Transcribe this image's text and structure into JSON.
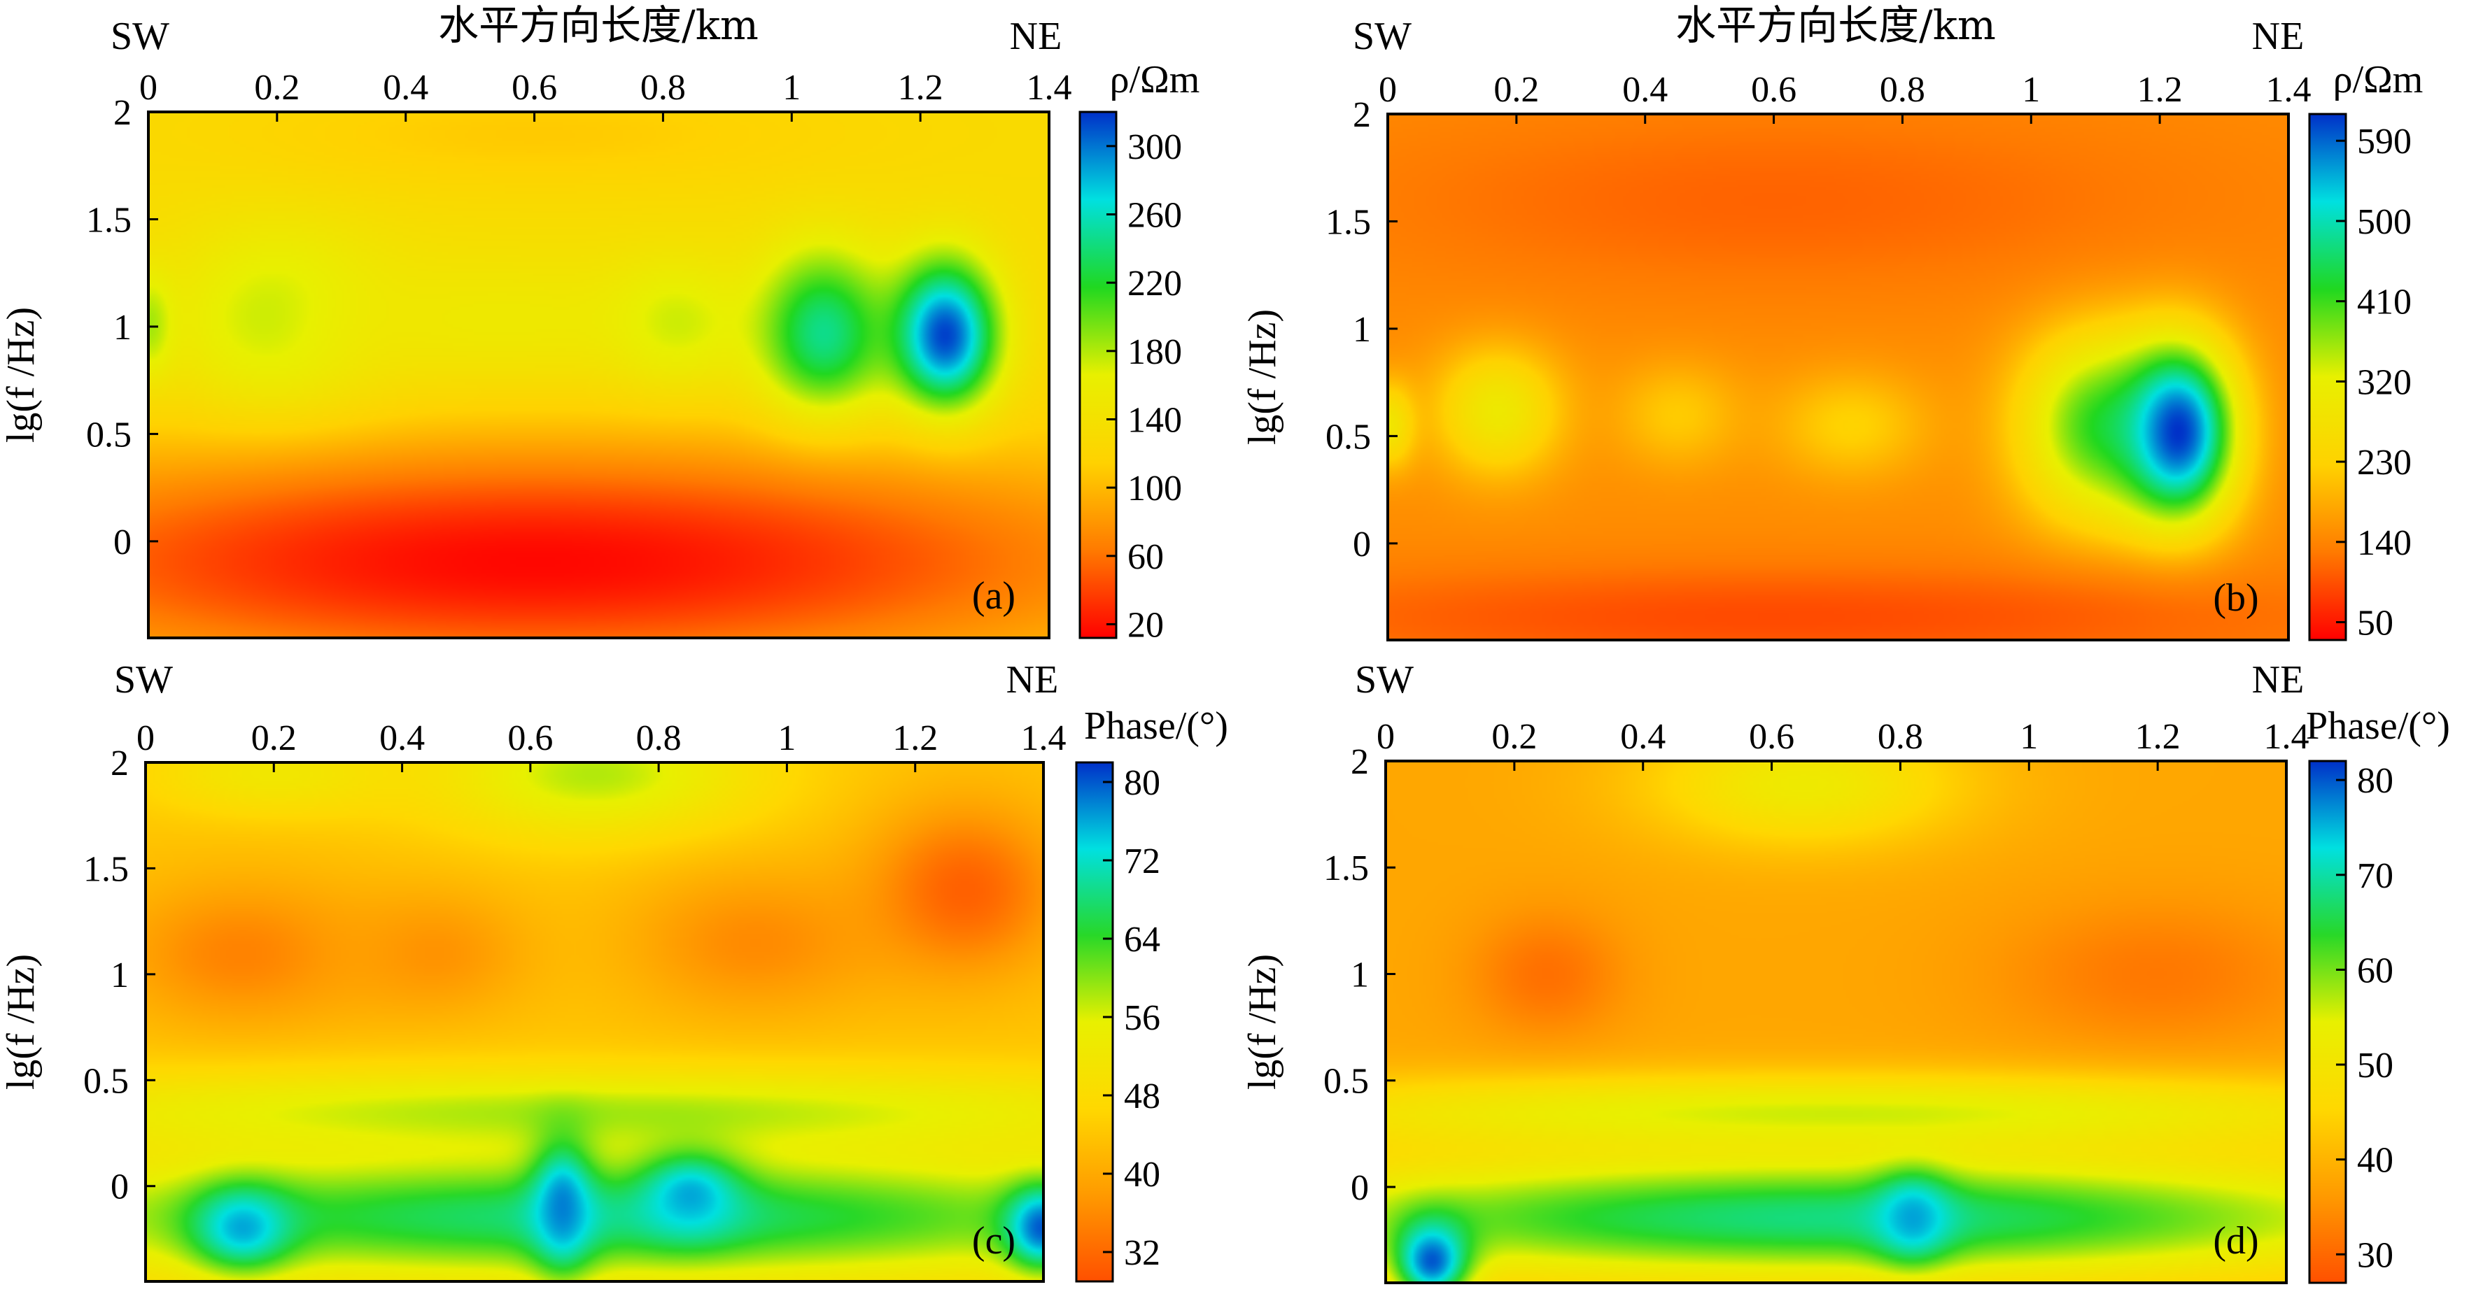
{
  "figure": {
    "top_axis_label": "水平方向长度/km",
    "left_end_label": "SW",
    "right_end_label": "NE"
  },
  "chart_data": [
    {
      "type": "heatmap",
      "panel_label": "(a)",
      "colorbar_title": "ρ/Ωm",
      "x_label": "水平方向长度/km",
      "y_label": "lg(f /Hz)",
      "xlim": [
        0,
        1.4
      ],
      "ylim": [
        -0.45,
        2
      ],
      "x_ticks": [
        "0",
        "0.2",
        "0.4",
        "0.6",
        "0.8",
        "1",
        "1.2",
        "1.4"
      ],
      "y_ticks": [
        "2",
        "1.5",
        "1",
        "0.5",
        "0"
      ],
      "colorbar_ticks": [
        "300",
        "260",
        "220",
        "180",
        "140",
        "100",
        "60",
        "20"
      ],
      "colorbar_range": [
        12,
        320
      ],
      "colormap": [
        "#ff0000",
        "#ff7a00",
        "#ffd200",
        "#e8f000",
        "#20d820",
        "#00e0e0",
        "#0030c8"
      ],
      "background": 130,
      "anomalies": [
        {
          "x": 0.0,
          "y": 1.0,
          "r": 0.04,
          "ry": 0.25,
          "value": 190
        },
        {
          "x": 0.2,
          "y": 1.0,
          "r": 0.16,
          "ry": 0.45,
          "value": 185
        },
        {
          "x": 0.55,
          "y": 1.0,
          "r": 0.35,
          "ry": 0.35,
          "value": 155
        },
        {
          "x": 0.82,
          "y": 1.0,
          "r": 0.1,
          "ry": 0.3,
          "value": 175
        },
        {
          "x": 1.05,
          "y": 0.95,
          "r": 0.1,
          "ry": 0.4,
          "value": 250
        },
        {
          "x": 1.24,
          "y": 0.95,
          "r": 0.08,
          "ry": 0.35,
          "value": 320
        },
        {
          "x": 0.6,
          "y": -0.1,
          "r": 1.0,
          "ry": 0.55,
          "value": 15
        },
        {
          "x": 0.6,
          "y": 1.9,
          "r": 0.5,
          "ry": 0.25,
          "value": 110
        }
      ]
    },
    {
      "type": "heatmap",
      "panel_label": "(b)",
      "colorbar_title": "ρ/Ωm",
      "x_label": "水平方向长度/km",
      "y_label": "lg(f /Hz)",
      "xlim": [
        0,
        1.4
      ],
      "ylim": [
        -0.45,
        2
      ],
      "x_ticks": [
        "0",
        "0.2",
        "0.4",
        "0.6",
        "0.8",
        "1",
        "1.2",
        "1.4"
      ],
      "y_ticks": [
        "2",
        "1.5",
        "1",
        "0.5",
        "0"
      ],
      "colorbar_ticks": [
        "590",
        "500",
        "410",
        "320",
        "230",
        "140",
        "50"
      ],
      "colorbar_range": [
        30,
        620
      ],
      "colormap": [
        "#ff0000",
        "#ff7a00",
        "#ffd200",
        "#e8f000",
        "#20d820",
        "#00e0e0",
        "#0030c8"
      ],
      "background": 150,
      "anomalies": [
        {
          "x": 0.0,
          "y": 0.55,
          "r": 0.04,
          "ry": 0.2,
          "value": 290
        },
        {
          "x": 0.17,
          "y": 0.62,
          "r": 0.1,
          "ry": 0.3,
          "value": 300
        },
        {
          "x": 0.45,
          "y": 0.6,
          "r": 0.1,
          "ry": 0.25,
          "value": 220
        },
        {
          "x": 0.72,
          "y": 0.55,
          "r": 0.12,
          "ry": 0.25,
          "value": 230
        },
        {
          "x": 1.1,
          "y": 0.55,
          "r": 0.12,
          "ry": 0.45,
          "value": 400
        },
        {
          "x": 1.23,
          "y": 0.52,
          "r": 0.09,
          "ry": 0.42,
          "value": 620
        },
        {
          "x": 0.6,
          "y": 1.6,
          "r": 0.7,
          "ry": 0.45,
          "value": 110
        },
        {
          "x": 0.6,
          "y": -0.35,
          "r": 0.9,
          "ry": 0.25,
          "value": 90
        }
      ]
    },
    {
      "type": "heatmap",
      "panel_label": "(c)",
      "colorbar_title": "Phase/(°)",
      "x_label": "",
      "y_label": "lg(f /Hz)",
      "xlim": [
        0,
        1.4
      ],
      "ylim": [
        -0.45,
        2
      ],
      "x_ticks": [
        "0",
        "0.2",
        "0.4",
        "0.6",
        "0.8",
        "1",
        "1.2",
        "1.4"
      ],
      "y_ticks": [
        "2",
        "1.5",
        "1",
        "0.5",
        "0"
      ],
      "colorbar_ticks": [
        "80",
        "72",
        "64",
        "56",
        "48",
        "40",
        "32"
      ],
      "colorbar_range": [
        29,
        82
      ],
      "colormap": [
        "#ff5000",
        "#ff9a00",
        "#ffd800",
        "#e8f000",
        "#28d828",
        "#00e0e0",
        "#0030c8"
      ],
      "background": 44,
      "anomalies": [
        {
          "x": 0.7,
          "y": 1.95,
          "r": 0.25,
          "ry": 0.3,
          "value": 58
        },
        {
          "x": 0.2,
          "y": 1.95,
          "r": 0.2,
          "ry": 0.2,
          "value": 52
        },
        {
          "x": 0.15,
          "y": 1.1,
          "r": 0.2,
          "ry": 0.35,
          "value": 35
        },
        {
          "x": 0.45,
          "y": 1.1,
          "r": 0.15,
          "ry": 0.3,
          "value": 37
        },
        {
          "x": 0.95,
          "y": 1.15,
          "r": 0.2,
          "ry": 0.35,
          "value": 36
        },
        {
          "x": 1.28,
          "y": 1.4,
          "r": 0.15,
          "ry": 0.4,
          "value": 31
        },
        {
          "x": 0.7,
          "y": 0.35,
          "r": 1.0,
          "ry": 0.2,
          "value": 58
        },
        {
          "x": 0.7,
          "y": -0.15,
          "r": 1.0,
          "ry": 0.3,
          "value": 68
        },
        {
          "x": 0.15,
          "y": -0.2,
          "r": 0.08,
          "ry": 0.2,
          "value": 76
        },
        {
          "x": 0.65,
          "y": -0.1,
          "r": 0.05,
          "ry": 0.3,
          "value": 78
        },
        {
          "x": 0.85,
          "y": -0.05,
          "r": 0.08,
          "ry": 0.2,
          "value": 76
        },
        {
          "x": 1.4,
          "y": -0.2,
          "r": 0.06,
          "ry": 0.2,
          "value": 80
        }
      ]
    },
    {
      "type": "heatmap",
      "panel_label": "(d)",
      "colorbar_title": "Phase/(°)",
      "x_label": "",
      "y_label": "lg(f /Hz)",
      "xlim": [
        0,
        1.4
      ],
      "ylim": [
        -0.45,
        2
      ],
      "x_ticks": [
        "0",
        "0.2",
        "0.4",
        "0.6",
        "0.8",
        "1",
        "1.2",
        "1.4"
      ],
      "y_ticks": [
        "2",
        "1.5",
        "1",
        "0.5",
        "0"
      ],
      "colorbar_ticks": [
        "80",
        "70",
        "60",
        "50",
        "40",
        "30"
      ],
      "colorbar_range": [
        27,
        82
      ],
      "colormap": [
        "#ff5000",
        "#ff9a00",
        "#ffd800",
        "#e8f000",
        "#28d828",
        "#00e0e0",
        "#0030c8"
      ],
      "background": 38,
      "anomalies": [
        {
          "x": 0.65,
          "y": 1.9,
          "r": 0.25,
          "ry": 0.3,
          "value": 52
        },
        {
          "x": 0.25,
          "y": 1.0,
          "r": 0.12,
          "ry": 0.3,
          "value": 31
        },
        {
          "x": 1.2,
          "y": 1.0,
          "r": 0.25,
          "ry": 0.35,
          "value": 32
        },
        {
          "x": 0.7,
          "y": 0.35,
          "r": 1.0,
          "ry": 0.18,
          "value": 55
        },
        {
          "x": 0.7,
          "y": -0.15,
          "r": 1.0,
          "ry": 0.3,
          "value": 68
        },
        {
          "x": 0.07,
          "y": -0.35,
          "r": 0.06,
          "ry": 0.2,
          "value": 80
        },
        {
          "x": 0.82,
          "y": -0.15,
          "r": 0.06,
          "ry": 0.2,
          "value": 76
        }
      ]
    }
  ]
}
